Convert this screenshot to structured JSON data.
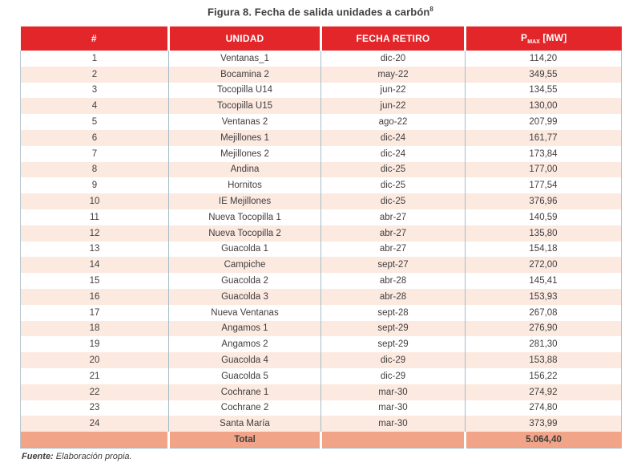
{
  "title": {
    "text": "Figura 8. Fecha de salida unidades a carbón",
    "superscript": "8"
  },
  "table": {
    "headers": {
      "num": "#",
      "unidad": "UNIDAD",
      "fecha": "FECHA RETIRO",
      "pmax_symbol": "P",
      "pmax_subscript": "MAX",
      "pmax_unit": " [MW]"
    },
    "rows": [
      {
        "num": "1",
        "unidad": "Ventanas_1",
        "fecha": "dic-20",
        "pmax": "114,20"
      },
      {
        "num": "2",
        "unidad": "Bocamina 2",
        "fecha": "may-22",
        "pmax": "349,55"
      },
      {
        "num": "3",
        "unidad": "Tocopilla U14",
        "fecha": "jun-22",
        "pmax": "134,55"
      },
      {
        "num": "4",
        "unidad": "Tocopilla U15",
        "fecha": "jun-22",
        "pmax": "130,00"
      },
      {
        "num": "5",
        "unidad": "Ventanas 2",
        "fecha": "ago-22",
        "pmax": "207,99"
      },
      {
        "num": "6",
        "unidad": "Mejillones 1",
        "fecha": "dic-24",
        "pmax": "161,77"
      },
      {
        "num": "7",
        "unidad": "Mejillones 2",
        "fecha": "dic-24",
        "pmax": "173,84"
      },
      {
        "num": "8",
        "unidad": "Andina",
        "fecha": "dic-25",
        "pmax": "177,00"
      },
      {
        "num": "9",
        "unidad": "Hornitos",
        "fecha": "dic-25",
        "pmax": "177,54"
      },
      {
        "num": "10",
        "unidad": "IE Mejillones",
        "fecha": "dic-25",
        "pmax": "376,96"
      },
      {
        "num": "11",
        "unidad": "Nueva Tocopilla 1",
        "fecha": "abr-27",
        "pmax": "140,59"
      },
      {
        "num": "12",
        "unidad": "Nueva Tocopilla 2",
        "fecha": "abr-27",
        "pmax": "135,80"
      },
      {
        "num": "13",
        "unidad": "Guacolda 1",
        "fecha": "abr-27",
        "pmax": "154,18"
      },
      {
        "num": "14",
        "unidad": "Campiche",
        "fecha": "sept-27",
        "pmax": "272,00"
      },
      {
        "num": "15",
        "unidad": "Guacolda 2",
        "fecha": "abr-28",
        "pmax": "145,41"
      },
      {
        "num": "16",
        "unidad": "Guacolda 3",
        "fecha": "abr-28",
        "pmax": "153,93"
      },
      {
        "num": "17",
        "unidad": "Nueva Ventanas",
        "fecha": "sept-28",
        "pmax": "267,08"
      },
      {
        "num": "18",
        "unidad": "Angamos 1",
        "fecha": "sept-29",
        "pmax": "276,90"
      },
      {
        "num": "19",
        "unidad": "Angamos 2",
        "fecha": "sept-29",
        "pmax": "281,30"
      },
      {
        "num": "20",
        "unidad": "Guacolda 4",
        "fecha": "dic-29",
        "pmax": "153,88"
      },
      {
        "num": "21",
        "unidad": "Guacolda 5",
        "fecha": "dic-29",
        "pmax": "156,22"
      },
      {
        "num": "22",
        "unidad": "Cochrane 1",
        "fecha": "mar-30",
        "pmax": "274,92"
      },
      {
        "num": "23",
        "unidad": "Cochrane 2",
        "fecha": "mar-30",
        "pmax": "274,80"
      },
      {
        "num": "24",
        "unidad": "Santa María",
        "fecha": "mar-30",
        "pmax": "373,99"
      }
    ],
    "total": {
      "label": "Total",
      "fecha": "",
      "value": "5.064,40"
    }
  },
  "footer": {
    "label": "Fuente:",
    "text": " Elaboración propia."
  },
  "colors": {
    "header_bg": "#e2262a",
    "row_alt_bg": "#fce9e0",
    "total_bg": "#f2a488",
    "border": "#a4bcc8",
    "text": "#3f3f3f"
  }
}
